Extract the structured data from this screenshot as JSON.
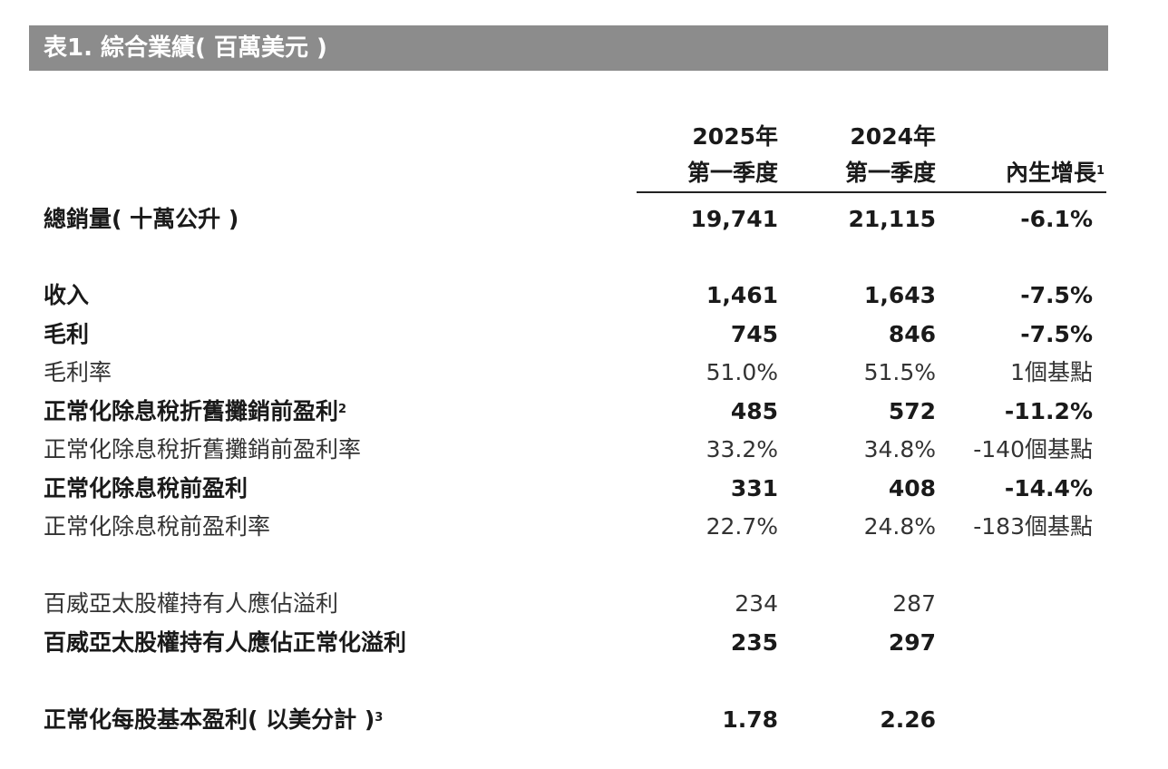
{
  "title": "表1. 綜合業績( 百萬美元 )",
  "columns": {
    "col1": {
      "line1": "2025年",
      "line2": "第一季度"
    },
    "col2": {
      "line1": "2024年",
      "line2": "第一季度"
    },
    "col3": {
      "label": "內生增長",
      "footnote": "1"
    }
  },
  "rows": [
    {
      "label": "總銷量( 十萬公升 )",
      "footnote": "",
      "v2025": "19,741",
      "v2024": "21,115",
      "growth": "-6.1%",
      "bold": true
    },
    {
      "label": "收入",
      "footnote": "",
      "v2025": "1,461",
      "v2024": "1,643",
      "growth": "-7.5%",
      "bold": true
    },
    {
      "label": "毛利",
      "footnote": "",
      "v2025": "745",
      "v2024": "846",
      "growth": "-7.5%",
      "bold": true
    },
    {
      "label": "毛利率",
      "footnote": "",
      "v2025": "51.0%",
      "v2024": "51.5%",
      "growth": "1個基點",
      "bold": false
    },
    {
      "label": "正常化除息稅折舊攤銷前盈利",
      "footnote": "2",
      "v2025": "485",
      "v2024": "572",
      "growth": "-11.2%",
      "bold": true
    },
    {
      "label": "正常化除息稅折舊攤銷前盈利率",
      "footnote": "",
      "v2025": "33.2%",
      "v2024": "34.8%",
      "growth": "-140個基點",
      "bold": false
    },
    {
      "label": "正常化除息稅前盈利",
      "footnote": "",
      "v2025": "331",
      "v2024": "408",
      "growth": "-14.4%",
      "bold": true
    },
    {
      "label": "正常化除息稅前盈利率",
      "footnote": "",
      "v2025": "22.7%",
      "v2024": "24.8%",
      "growth": "-183個基點",
      "bold": false
    },
    {
      "label": "百威亞太股權持有人應佔溢利",
      "footnote": "",
      "v2025": "234",
      "v2024": "287",
      "growth": "",
      "bold": false
    },
    {
      "label": "百威亞太股權持有人應佔正常化溢利",
      "footnote": "",
      "v2025": "235",
      "v2024": "297",
      "growth": "",
      "bold": true
    },
    {
      "label": "正常化每股基本盈利( 以美分計 )",
      "footnote": "3",
      "v2025": "1.78",
      "v2024": "2.26",
      "growth": "",
      "bold": true
    }
  ]
}
